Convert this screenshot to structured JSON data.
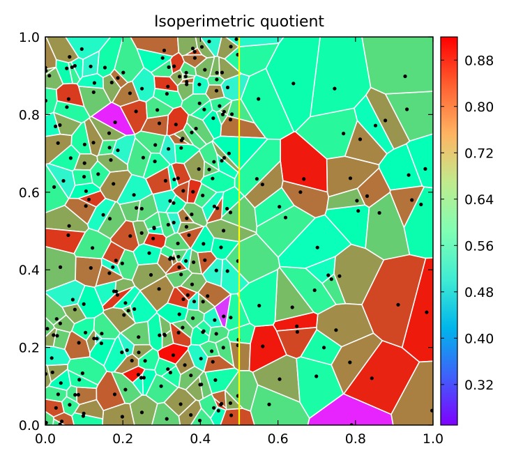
{
  "chart_data": {
    "type": "voronoi",
    "title": "Isoperimetric quotient",
    "xlabel": "",
    "ylabel": "",
    "xlim": [
      0.0,
      1.0
    ],
    "ylim": [
      0.0,
      1.0
    ],
    "x_ticks": [
      "0.0",
      "0.2",
      "0.4",
      "0.6",
      "0.8",
      "1.0"
    ],
    "y_ticks": [
      "0.0",
      "0.2",
      "0.4",
      "0.6",
      "0.8",
      "1.0"
    ],
    "vertical_line": {
      "x": 0.5,
      "color": "#ffff00"
    },
    "colorbar": {
      "min": 0.25,
      "max": 0.92,
      "ticks": [
        "0.32",
        "0.40",
        "0.48",
        "0.56",
        "0.64",
        "0.72",
        "0.80",
        "0.88"
      ],
      "colormap": "rainbow"
    },
    "cell_edge_color": "#ffffff",
    "point_color": "#000000",
    "grid": false,
    "description_seed": 7,
    "points_left_half_count": 240,
    "points_right_half_count": 38,
    "notable_cells": [
      {
        "x": 0.33,
        "y": 0.18,
        "value": 0.91
      },
      {
        "x": 0.24,
        "y": 0.13,
        "value": 0.9
      },
      {
        "x": 0.06,
        "y": 0.84,
        "value": 0.87
      },
      {
        "x": 0.46,
        "y": 0.28,
        "value": 0.3
      },
      {
        "x": 0.79,
        "y": 0.0,
        "value": 0.28
      },
      {
        "x": 0.18,
        "y": 0.78,
        "value": 0.28
      },
      {
        "x": 0.56,
        "y": 0.62,
        "value": 0.8
      },
      {
        "x": 0.83,
        "y": 0.59,
        "value": 0.82
      },
      {
        "x": 0.65,
        "y": 0.24,
        "value": 0.86
      },
      {
        "x": 0.91,
        "y": 0.31,
        "value": 0.86
      },
      {
        "x": 0.64,
        "y": 0.88,
        "value": 0.6
      },
      {
        "x": 0.98,
        "y": 0.66,
        "value": 0.58
      }
    ]
  }
}
